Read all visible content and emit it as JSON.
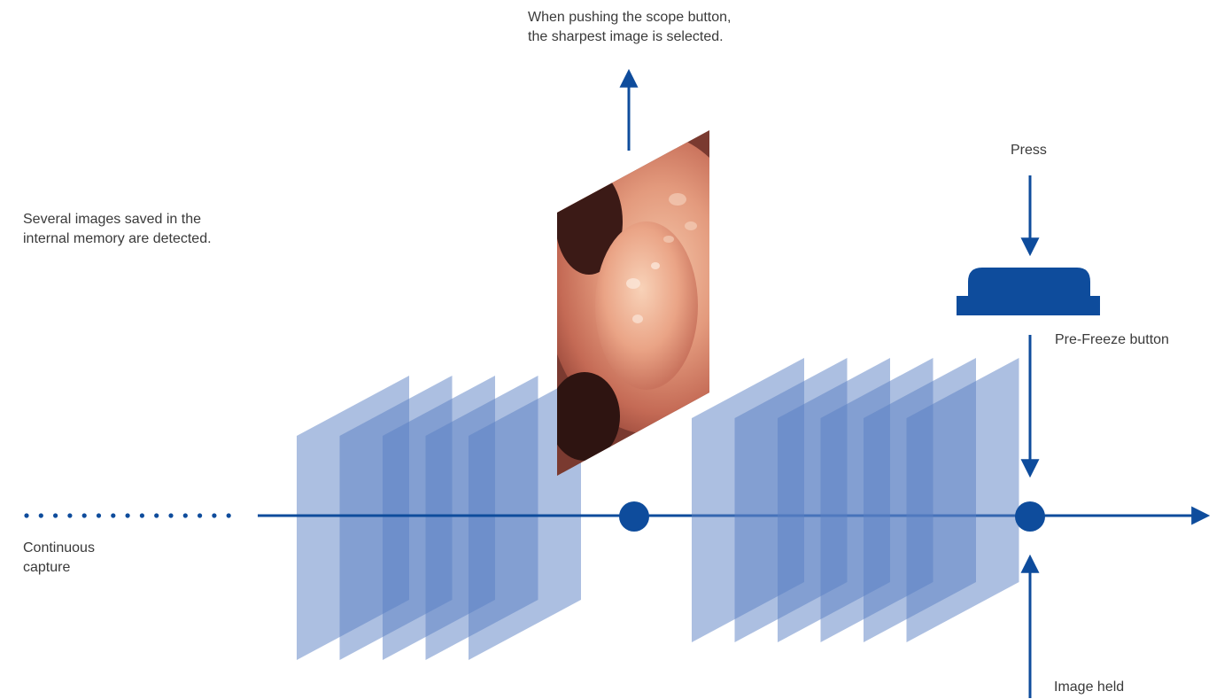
{
  "colors": {
    "primary": "#0e4c9c",
    "frame": "#5a7fc4",
    "tissue": "#d9826d",
    "background": "#ffffff"
  },
  "icons": {
    "pre_freeze_button": "button-icon",
    "endoscopic_image": "endoscopy-image-icon"
  },
  "labels": {
    "top_annotation": [
      "When pushing the scope button,",
      "the sharpest image is selected."
    ],
    "left_annotation": [
      "Several images saved in the",
      "internal memory are detected."
    ],
    "press": "Press",
    "pre_freeze_button": "Pre-Freeze button",
    "continuous_capture": [
      "Continuous",
      "capture"
    ],
    "image_held": "Image held"
  },
  "frame_groups": {
    "left_group_frame_count": 5,
    "right_group_frame_count": 6
  }
}
